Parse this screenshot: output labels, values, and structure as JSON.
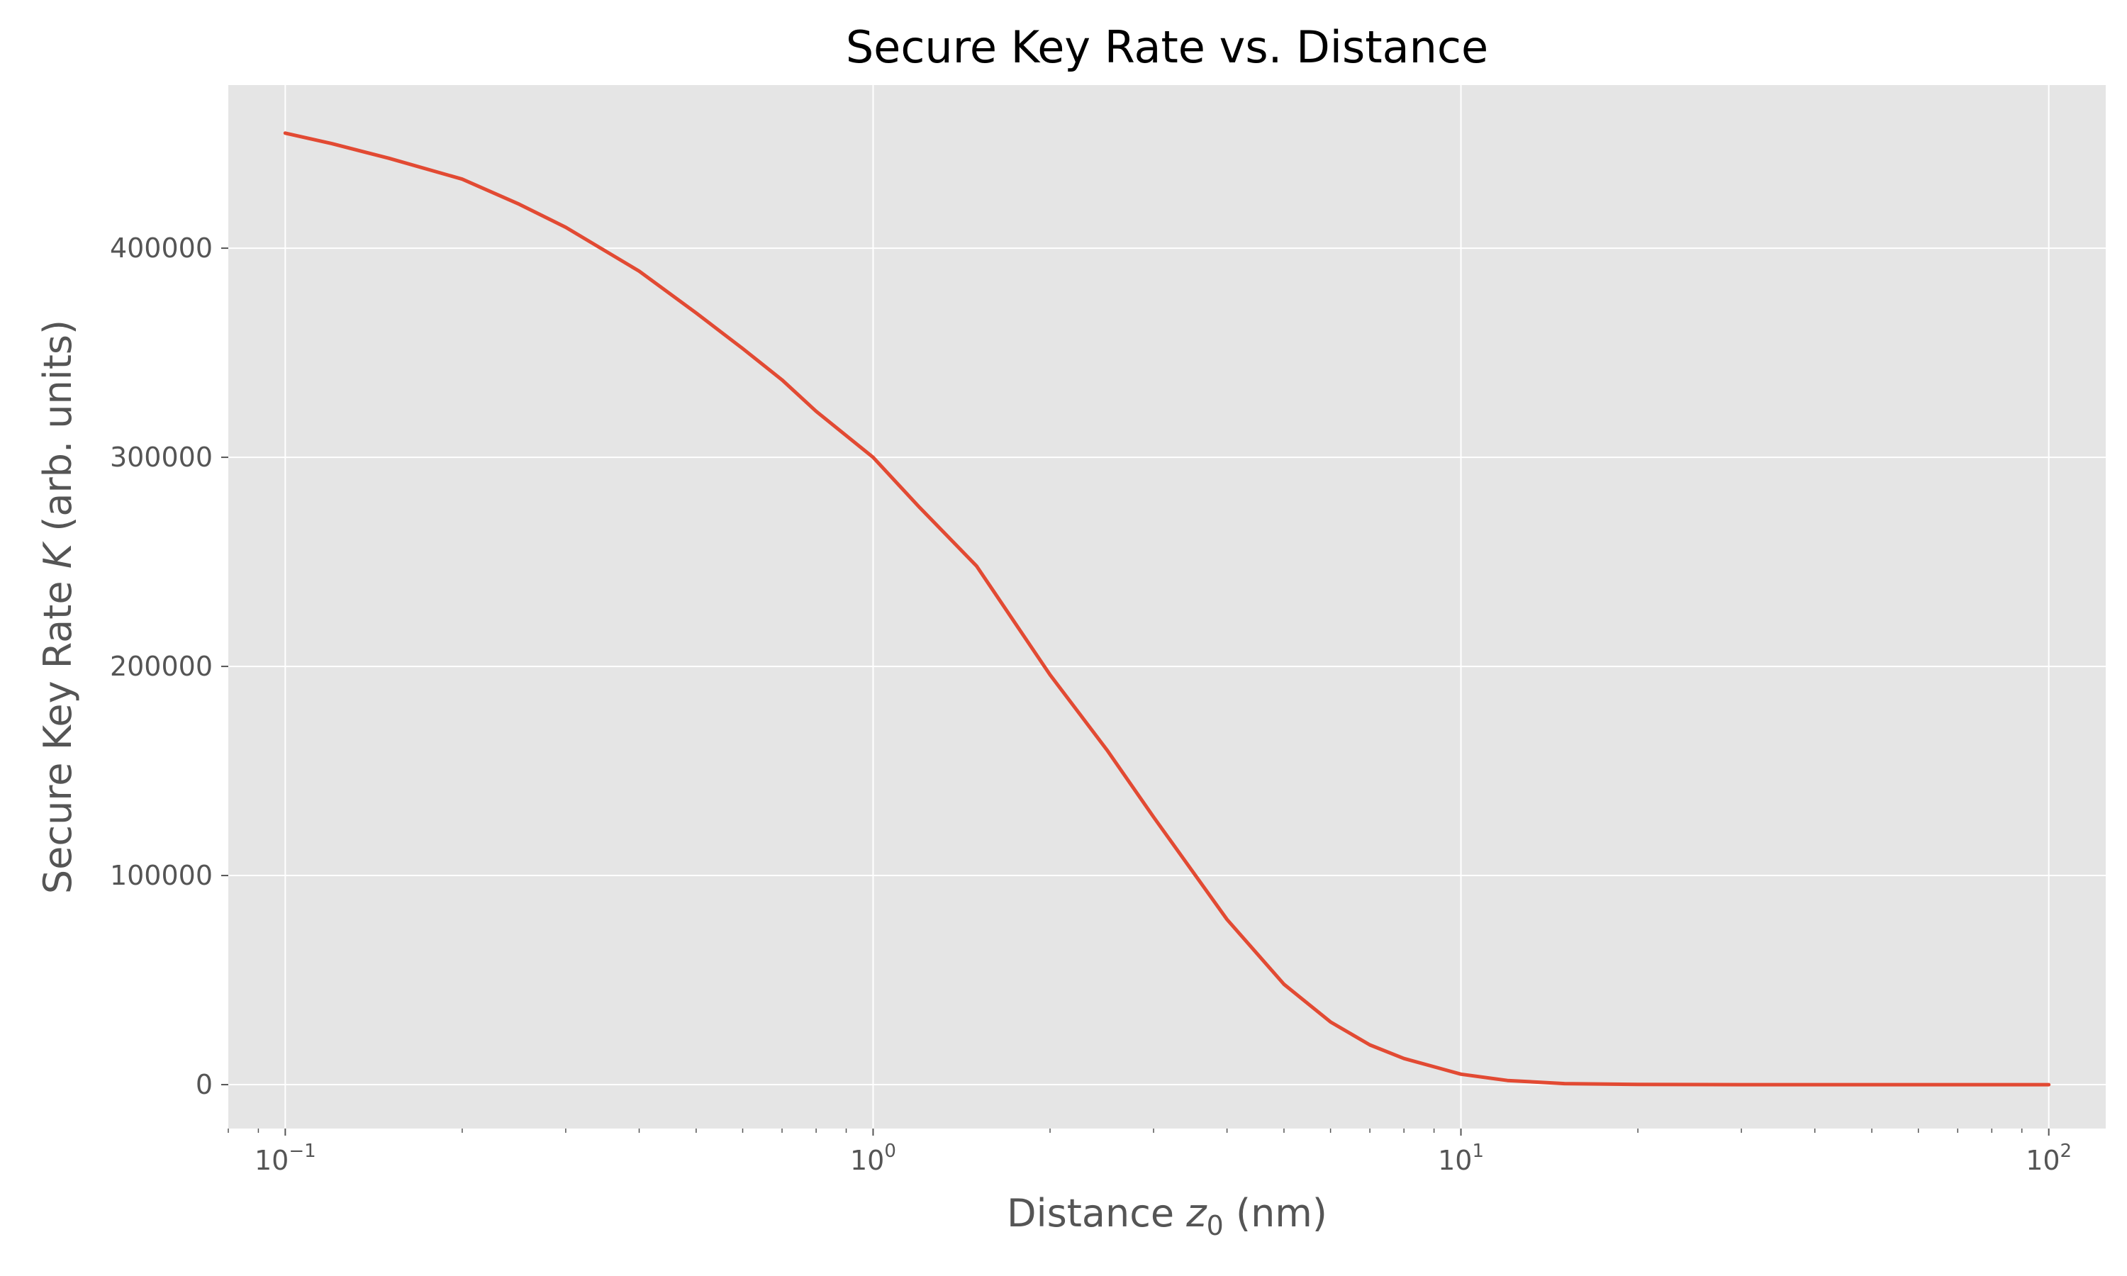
{
  "chart_data": {
    "type": "line",
    "title": "Secure Key Rate vs. Distance",
    "xlabel": "Distance z0 (nm)",
    "xlabel_parts": {
      "prefix": "Distance ",
      "var": "z",
      "sub": "0",
      "suffix": " (nm)"
    },
    "ylabel": "Secure Key Rate K (arb. units)",
    "ylabel_parts": {
      "prefix": "Secure Key Rate ",
      "var": "K",
      "suffix": " (arb. units)"
    },
    "xscale": "log",
    "xlim": [
      0.08,
      125
    ],
    "ylim": [
      -21000,
      478000
    ],
    "grid": true,
    "background": "#e5e5e5",
    "line_color": "#e24a33",
    "x_ticks": [
      {
        "value": 0.1,
        "base": "10",
        "exp": "−1"
      },
      {
        "value": 1,
        "base": "10",
        "exp": "0"
      },
      {
        "value": 10,
        "base": "10",
        "exp": "1"
      },
      {
        "value": 100,
        "base": "10",
        "exp": "2"
      }
    ],
    "y_ticks": [
      {
        "value": 0,
        "label": "0"
      },
      {
        "value": 100000,
        "label": "100000"
      },
      {
        "value": 200000,
        "label": "200000"
      },
      {
        "value": 300000,
        "label": "300000"
      },
      {
        "value": 400000,
        "label": "400000"
      }
    ],
    "series": [
      {
        "x": [
          0.1,
          0.12,
          0.15,
          0.2,
          0.25,
          0.3,
          0.4,
          0.5,
          0.6,
          0.7,
          0.8,
          1.0,
          1.2,
          1.5,
          2.0,
          2.5,
          3.0,
          4.0,
          5.0,
          6.0,
          7.0,
          8.0,
          10,
          12,
          15,
          20,
          30,
          50,
          100
        ],
        "y": [
          455000,
          450000,
          443000,
          433000,
          421000,
          410000,
          389000,
          369000,
          352000,
          337000,
          322000,
          300000,
          276000,
          248000,
          196000,
          160000,
          128000,
          79000,
          48000,
          30000,
          19000,
          12500,
          5000,
          2000,
          500,
          100,
          0,
          0,
          0
        ]
      }
    ]
  }
}
